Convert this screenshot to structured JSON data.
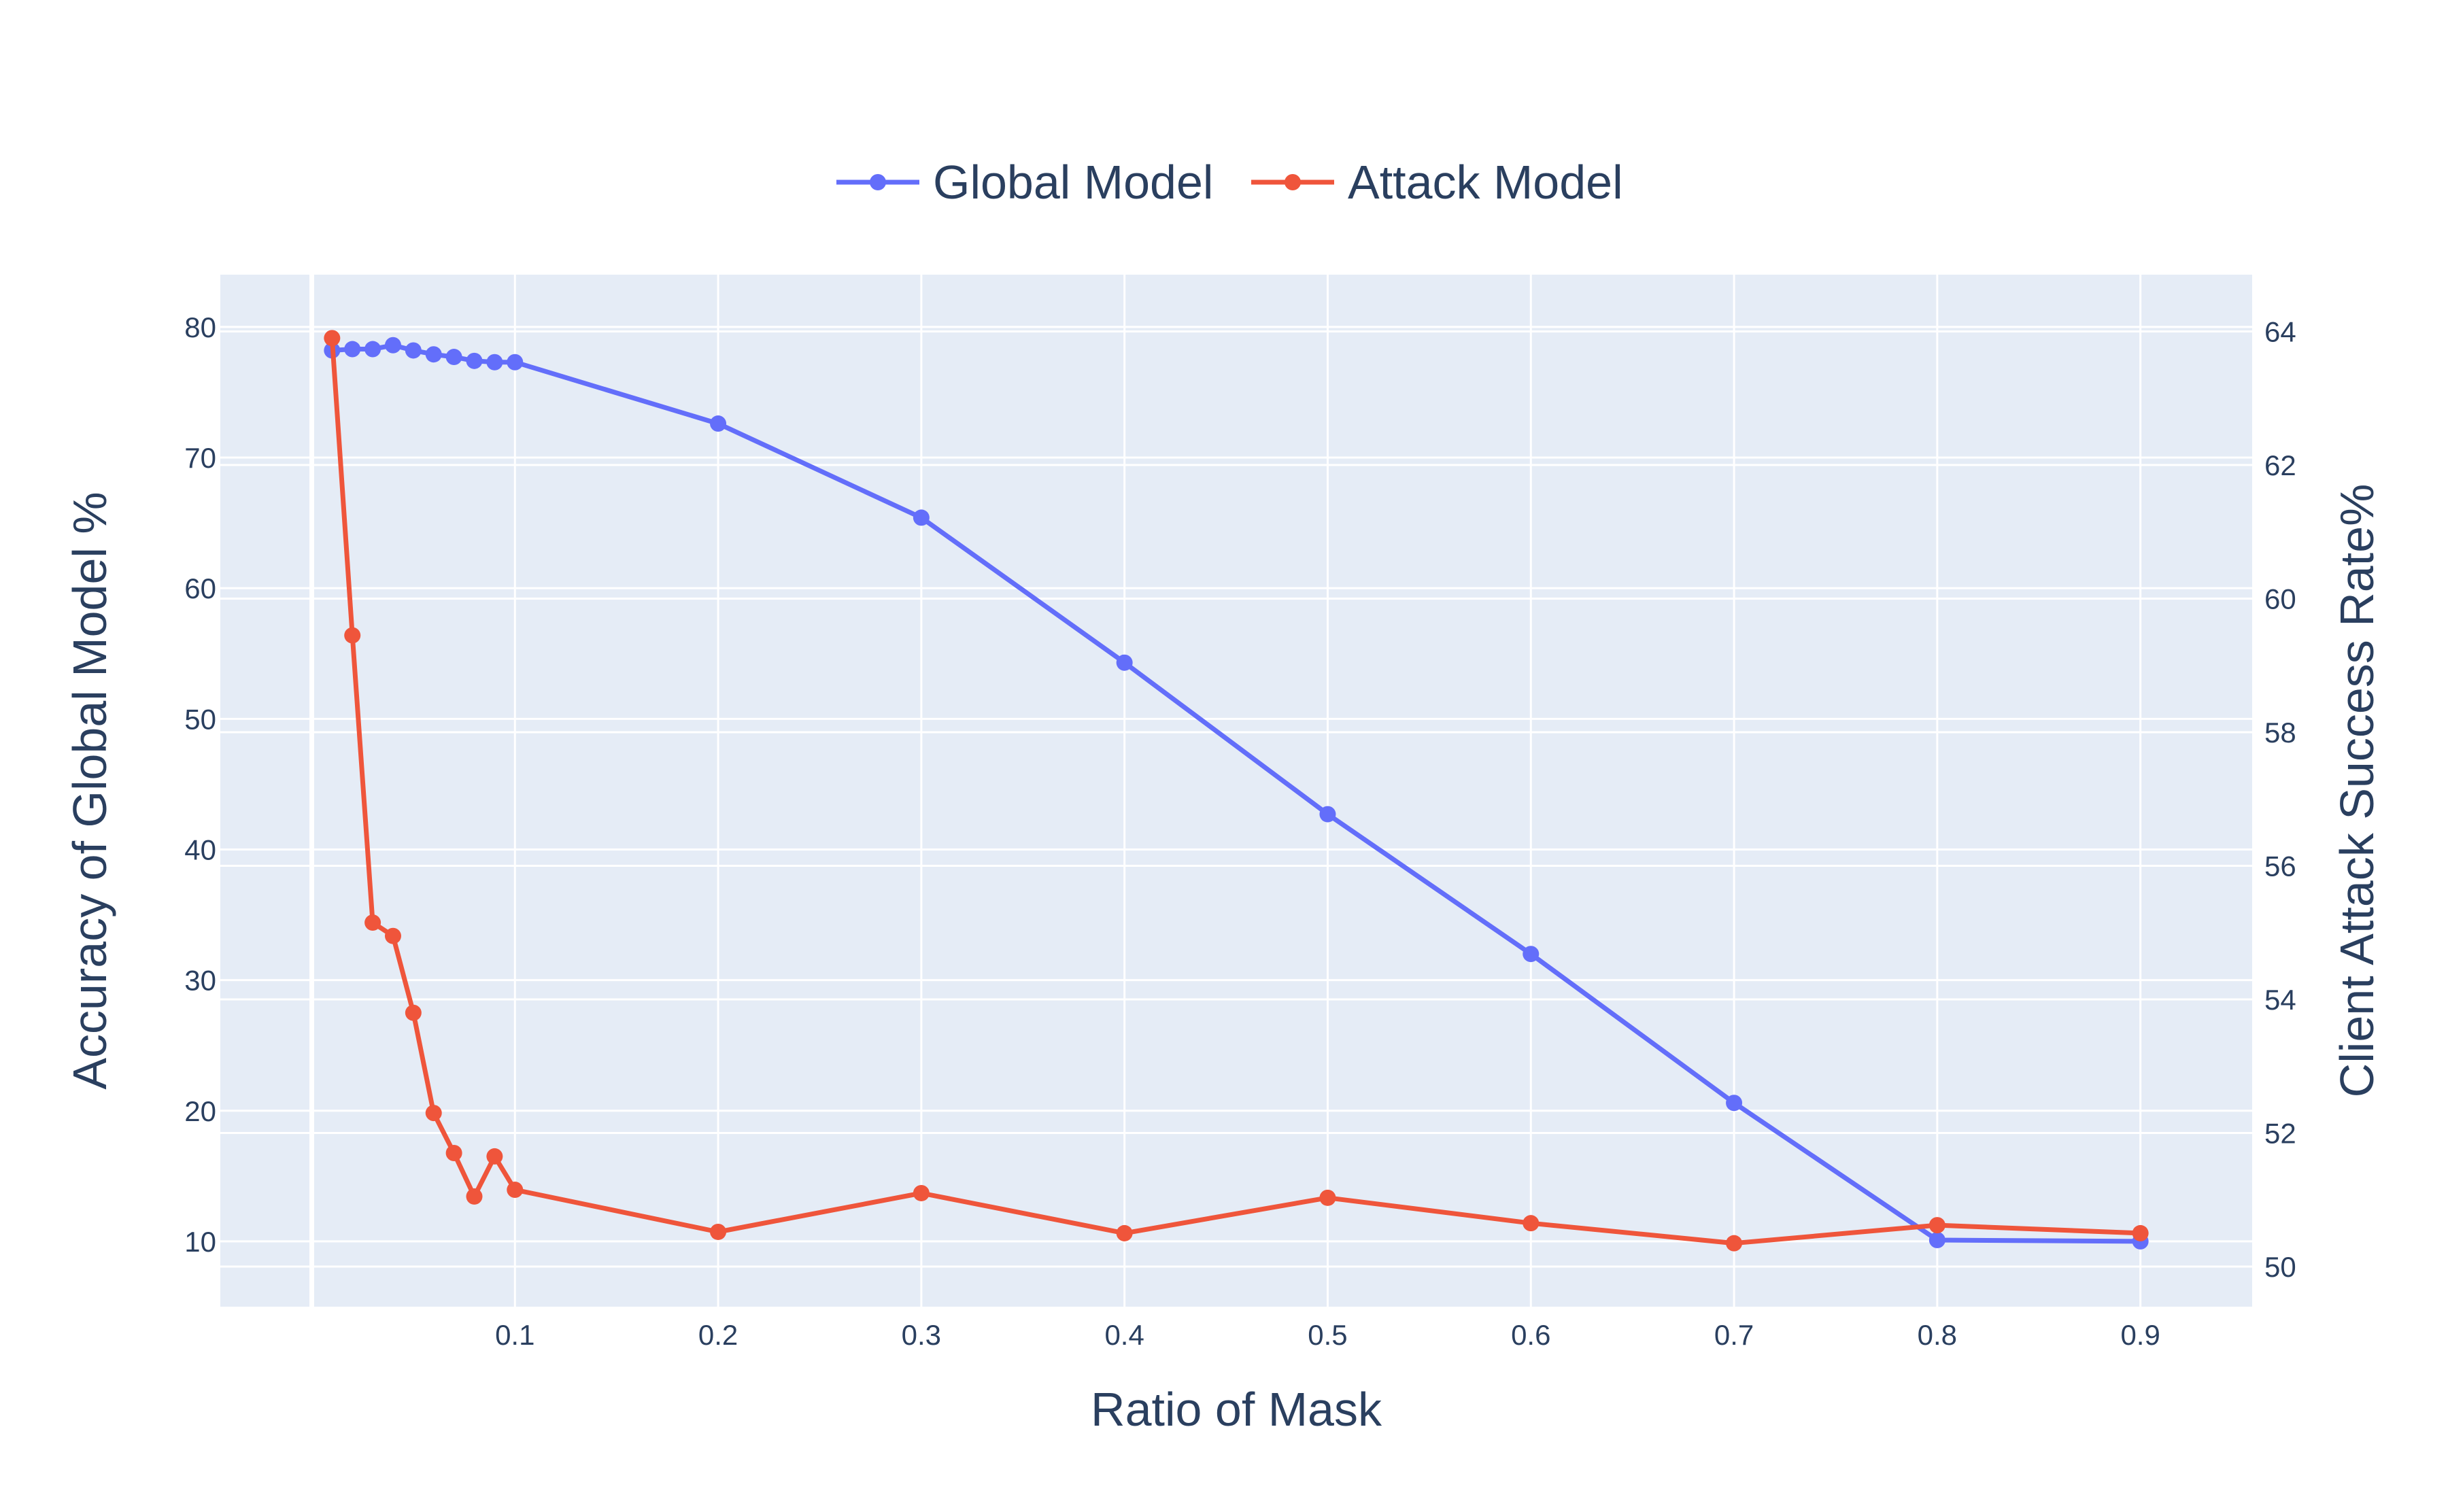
{
  "chart_data": {
    "type": "line",
    "xlabel": "Ratio of Mask",
    "ylabel": "Accuracy of Global Model %",
    "y2label": "Client Attack Success Rate%",
    "x": [
      0.01,
      0.02,
      0.03,
      0.04,
      0.05,
      0.06,
      0.07,
      0.08,
      0.09,
      0.1,
      0.2,
      0.3,
      0.4,
      0.5,
      0.6,
      0.7,
      0.8,
      0.9
    ],
    "xlim": [
      -0.045,
      0.955
    ],
    "ylim": [
      5,
      84
    ],
    "y2lim": [
      49.4,
      64.85
    ],
    "x_ticks": [
      "0.1",
      "0.2",
      "0.3",
      "0.4",
      "0.5",
      "0.6",
      "0.7",
      "0.8",
      "0.9"
    ],
    "y_ticks": [
      "10",
      "20",
      "30",
      "40",
      "50",
      "60",
      "70",
      "80"
    ],
    "y2_ticks": [
      "50",
      "52",
      "54",
      "56",
      "58",
      "60",
      "62",
      "64"
    ],
    "grid": true,
    "legend_position": "top-center",
    "series": [
      {
        "name": "Global Model",
        "axis": "left",
        "color": "#636efa",
        "values": [
          78.2,
          78.3,
          78.3,
          78.6,
          78.2,
          77.9,
          77.7,
          77.4,
          77.3,
          77.3,
          72.6,
          65.4,
          54.3,
          42.7,
          32.0,
          20.6,
          10.1,
          10.0
        ]
      },
      {
        "name": "Attack Model",
        "axis": "right",
        "color": "#ef553b",
        "values": [
          63.9,
          59.45,
          55.15,
          54.95,
          53.8,
          52.3,
          51.7,
          51.05,
          51.65,
          51.15,
          50.52,
          51.1,
          50.5,
          51.03,
          50.65,
          50.35,
          50.62,
          50.5
        ]
      }
    ]
  }
}
